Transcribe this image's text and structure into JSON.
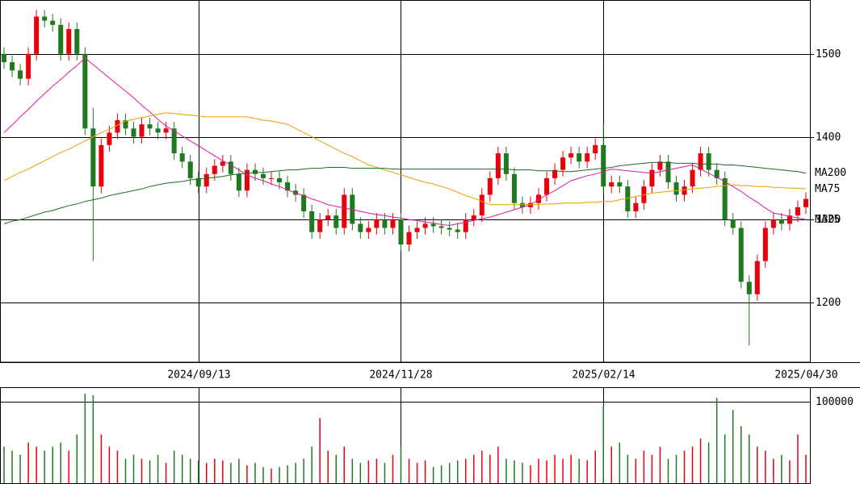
{
  "chart_data": {
    "type": "candlestick",
    "categories": [
      null,
      null,
      null,
      null,
      null,
      null,
      null,
      null,
      null,
      null,
      null,
      null,
      null,
      null,
      null,
      null,
      null,
      null,
      null,
      null,
      null,
      null,
      null,
      null,
      "2024/09/13",
      null,
      null,
      null,
      null,
      null,
      null,
      null,
      null,
      null,
      null,
      null,
      null,
      null,
      null,
      null,
      null,
      null,
      null,
      null,
      null,
      null,
      null,
      null,
      null,
      "2024/11/28",
      null,
      null,
      null,
      null,
      null,
      null,
      null,
      null,
      null,
      null,
      null,
      null,
      null,
      null,
      null,
      null,
      null,
      null,
      null,
      null,
      null,
      null,
      null,
      null,
      "2025/02/14",
      null,
      null,
      null,
      null,
      null,
      null,
      null,
      null,
      null,
      null,
      null,
      null,
      null,
      null,
      null,
      null,
      null,
      null,
      null,
      null,
      null,
      null,
      null,
      null,
      "2025/04/30"
    ],
    "open": [
      1500,
      1490,
      1480,
      1470,
      1500,
      1545,
      1540,
      1535,
      1500,
      1530,
      1500,
      1410,
      1340,
      1390,
      1405,
      1420,
      1410,
      1400,
      1415,
      1410,
      1405,
      1410,
      1380,
      1370,
      1350,
      1340,
      1355,
      1365,
      1370,
      1355,
      1335,
      1360,
      1355,
      1350,
      1350,
      1345,
      1335,
      1330,
      1310,
      1285,
      1300,
      1305,
      1290,
      1330,
      1295,
      1285,
      1290,
      1300,
      1290,
      1300,
      1270,
      1285,
      1290,
      1295,
      1292,
      1290,
      1288,
      1285,
      1300,
      1305,
      1330,
      1350,
      1380,
      1355,
      1320,
      1315,
      1320,
      1330,
      1350,
      1360,
      1375,
      1380,
      1370,
      1380,
      1390,
      1340,
      1345,
      1340,
      1310,
      1320,
      1340,
      1360,
      1370,
      1345,
      1330,
      1340,
      1360,
      1380,
      1360,
      1350,
      1300,
      1290,
      1225,
      1210,
      1250,
      1290,
      1300,
      1295,
      1305,
      1315
    ],
    "high": [
      1508,
      1498,
      1488,
      1508,
      1553,
      1553,
      1548,
      1543,
      1538,
      1538,
      1508,
      1435,
      1398,
      1413,
      1428,
      1428,
      1418,
      1423,
      1423,
      1418,
      1418,
      1418,
      1388,
      1378,
      1358,
      1363,
      1373,
      1378,
      1378,
      1363,
      1368,
      1368,
      1363,
      1358,
      1358,
      1353,
      1343,
      1338,
      1318,
      1308,
      1313,
      1313,
      1338,
      1338,
      1303,
      1298,
      1308,
      1308,
      1308,
      1308,
      1293,
      1298,
      1303,
      1303,
      1300,
      1298,
      1296,
      1308,
      1313,
      1338,
      1358,
      1388,
      1388,
      1363,
      1328,
      1328,
      1338,
      1358,
      1368,
      1383,
      1388,
      1388,
      1388,
      1398,
      1415,
      1353,
      1353,
      1348,
      1328,
      1348,
      1368,
      1378,
      1378,
      1353,
      1348,
      1368,
      1388,
      1388,
      1368,
      1358,
      1308,
      1298,
      1233,
      1258,
      1298,
      1308,
      1308,
      1313,
      1323,
      1333
    ],
    "low": [
      1482,
      1472,
      1462,
      1462,
      1492,
      1532,
      1527,
      1492,
      1492,
      1492,
      1402,
      1250,
      1332,
      1382,
      1397,
      1402,
      1392,
      1392,
      1402,
      1397,
      1397,
      1372,
      1362,
      1342,
      1332,
      1332,
      1347,
      1357,
      1347,
      1327,
      1327,
      1347,
      1342,
      1342,
      1337,
      1327,
      1322,
      1302,
      1277,
      1277,
      1292,
      1282,
      1282,
      1287,
      1277,
      1277,
      1282,
      1282,
      1282,
      1262,
      1262,
      1277,
      1282,
      1284,
      1282,
      1280,
      1277,
      1277,
      1292,
      1297,
      1322,
      1342,
      1347,
      1312,
      1307,
      1307,
      1312,
      1322,
      1342,
      1352,
      1367,
      1362,
      1362,
      1372,
      1332,
      1332,
      1332,
      1302,
      1302,
      1312,
      1332,
      1352,
      1337,
      1322,
      1322,
      1332,
      1352,
      1352,
      1342,
      1292,
      1282,
      1217,
      1148,
      1202,
      1242,
      1282,
      1287,
      1287,
      1297,
      1307
    ],
    "close": [
      1490,
      1480,
      1470,
      1500,
      1545,
      1540,
      1535,
      1500,
      1530,
      1500,
      1410,
      1340,
      1390,
      1405,
      1420,
      1410,
      1400,
      1415,
      1410,
      1405,
      1410,
      1380,
      1370,
      1350,
      1340,
      1355,
      1365,
      1370,
      1355,
      1335,
      1360,
      1355,
      1350,
      1350,
      1345,
      1335,
      1330,
      1310,
      1285,
      1300,
      1305,
      1290,
      1330,
      1295,
      1285,
      1290,
      1300,
      1290,
      1300,
      1270,
      1285,
      1290,
      1295,
      1292,
      1290,
      1288,
      1285,
      1300,
      1305,
      1330,
      1350,
      1380,
      1355,
      1320,
      1315,
      1320,
      1330,
      1350,
      1360,
      1375,
      1380,
      1370,
      1380,
      1390,
      1340,
      1345,
      1340,
      1310,
      1320,
      1340,
      1360,
      1370,
      1345,
      1330,
      1340,
      1360,
      1380,
      1360,
      1350,
      1300,
      1290,
      1225,
      1210,
      1250,
      1290,
      1300,
      1295,
      1305,
      1315,
      1325
    ],
    "up_color": "#e8000b",
    "down_color": "#1f7a1f",
    "ylim": [
      1128,
      1565
    ],
    "yticks": [
      1200,
      1300,
      1400,
      1500
    ],
    "grid": true,
    "series": [
      {
        "name": "MA25",
        "color": "#e0199f",
        "values": [
          1405,
          1414,
          1424,
          1433,
          1443,
          1452,
          1461,
          1469,
          1478,
          1486,
          1495,
          1487,
          1479,
          1471,
          1463,
          1455,
          1447,
          1438,
          1430,
          1421,
          1413,
          1407,
          1401,
          1395,
          1389,
          1383,
          1377,
          1371,
          1366,
          1360,
          1354,
          1350,
          1347,
          1343,
          1340,
          1336,
          1332,
          1329,
          1325,
          1322,
          1318,
          1316,
          1314,
          1312,
          1310,
          1308,
          1306,
          1305,
          1303,
          1302,
          1300,
          1299,
          1297,
          1296,
          1294,
          1293,
          1295,
          1297,
          1299,
          1301,
          1303,
          1306,
          1309,
          1312,
          1315,
          1318,
          1324,
          1330,
          1335,
          1341,
          1347,
          1350,
          1353,
          1355,
          1358,
          1361,
          1360,
          1359,
          1358,
          1357,
          1356,
          1358,
          1360,
          1362,
          1364,
          1366,
          1361,
          1356,
          1351,
          1346,
          1340,
          1334,
          1327,
          1321,
          1314,
          1308,
          1306,
          1304,
          1302,
          1300
        ]
      },
      {
        "name": "MA75",
        "color": "#f0a000",
        "values": [
          1347,
          1352,
          1357,
          1361,
          1366,
          1371,
          1376,
          1381,
          1385,
          1390,
          1395,
          1400,
          1405,
          1409,
          1414,
          1419,
          1421,
          1423,
          1425,
          1427,
          1429,
          1428,
          1427,
          1426,
          1425,
          1424,
          1424,
          1424,
          1424,
          1424,
          1424,
          1422,
          1420,
          1419,
          1417,
          1415,
          1410,
          1405,
          1400,
          1395,
          1390,
          1385,
          1380,
          1376,
          1371,
          1366,
          1363,
          1360,
          1357,
          1354,
          1351,
          1348,
          1345,
          1343,
          1340,
          1337,
          1333,
          1329,
          1326,
          1322,
          1318,
          1318,
          1318,
          1318,
          1318,
          1318,
          1318,
          1319,
          1319,
          1320,
          1320,
          1320,
          1321,
          1321,
          1322,
          1322,
          1324,
          1326,
          1328,
          1330,
          1332,
          1333,
          1334,
          1335,
          1336,
          1337,
          1338,
          1339,
          1340,
          1341,
          1342,
          1341,
          1341,
          1340,
          1340,
          1339,
          1339,
          1338,
          1338,
          1337
        ]
      },
      {
        "name": "MA200",
        "color": "#1f6b1f",
        "values": [
          1295,
          1298,
          1300,
          1303,
          1306,
          1309,
          1311,
          1314,
          1317,
          1319,
          1322,
          1324,
          1326,
          1329,
          1331,
          1333,
          1335,
          1337,
          1340,
          1342,
          1344,
          1345,
          1346,
          1348,
          1349,
          1350,
          1351,
          1352,
          1354,
          1355,
          1356,
          1357,
          1357,
          1358,
          1359,
          1360,
          1360,
          1361,
          1362,
          1362,
          1363,
          1363,
          1363,
          1362,
          1362,
          1362,
          1362,
          1362,
          1361,
          1361,
          1361,
          1361,
          1361,
          1361,
          1361,
          1361,
          1361,
          1361,
          1361,
          1361,
          1361,
          1361,
          1361,
          1360,
          1360,
          1360,
          1359,
          1359,
          1359,
          1358,
          1358,
          1359,
          1360,
          1361,
          1362,
          1363,
          1365,
          1366,
          1367,
          1368,
          1369,
          1369,
          1369,
          1368,
          1368,
          1368,
          1367,
          1367,
          1367,
          1366,
          1366,
          1365,
          1364,
          1363,
          1362,
          1361,
          1360,
          1359,
          1358,
          1356
        ]
      }
    ],
    "volume": {
      "values": [
        45000,
        40000,
        35000,
        50000,
        45000,
        40000,
        45000,
        50000,
        40000,
        60000,
        110000,
        108000,
        60000,
        45000,
        40000,
        30000,
        35000,
        30000,
        28000,
        35000,
        25000,
        40000,
        35000,
        30000,
        28000,
        25000,
        30000,
        28000,
        25000,
        30000,
        22000,
        25000,
        20000,
        18000,
        20000,
        22000,
        25000,
        30000,
        45000,
        80000,
        40000,
        35000,
        45000,
        30000,
        25000,
        28000,
        30000,
        25000,
        35000,
        45000,
        30000,
        25000,
        28000,
        20000,
        22000,
        25000,
        28000,
        30000,
        35000,
        40000,
        35000,
        45000,
        30000,
        28000,
        25000,
        22000,
        30000,
        28000,
        35000,
        30000,
        35000,
        30000,
        28000,
        40000,
        95000,
        45000,
        50000,
        35000,
        30000,
        40000,
        35000,
        45000,
        30000,
        35000,
        40000,
        45000,
        55000,
        50000,
        105000,
        60000,
        90000,
        70000,
        60000,
        45000,
        40000,
        30000,
        35000,
        28000,
        60000,
        35000
      ],
      "ylim": [
        0,
        118000
      ],
      "yticks": [
        100000
      ]
    }
  }
}
